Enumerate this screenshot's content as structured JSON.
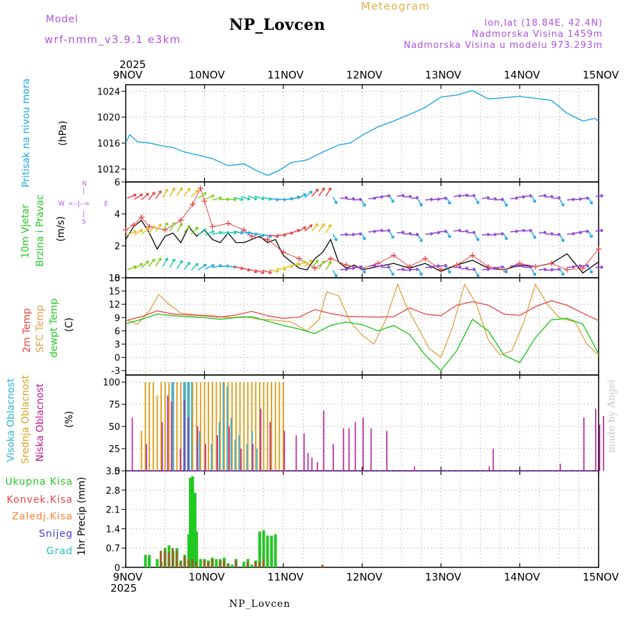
{
  "header": {
    "model_label": "Model",
    "model_name": "wrf-nmm_v3.9.1  e3km",
    "station": "NP_Lovcen",
    "product": "Meteogram",
    "lonlat": "lon,lat (18.84E, 42.4N)",
    "altitude": "Nadmorska Visina 1459m",
    "model_altitude": "Nadmorska Visina u modelu 973.293m"
  },
  "footer": {
    "station": "NP_Lovcen",
    "watermark": "made by Angel"
  },
  "time_axis": {
    "year": "2025",
    "day_labels": [
      "9NOV",
      "10NOV",
      "11NOV",
      "12NOV",
      "13NOV",
      "14NOV",
      "15NOV"
    ],
    "start_day": 9,
    "end_day": 15
  },
  "colors": {
    "pressure": "#1ea8e0",
    "temp2m": "#e84444",
    "sfc_temp": "#e0a040",
    "dewpt": "#22c822",
    "high_cloud": "#2bb0e0",
    "mid_cloud": "#e0a020",
    "low_cloud": "#c01890",
    "total_precip": "#22c822",
    "conv_precip": "#e84444",
    "frozen_precip": "#ff8030",
    "snow": "#4040e0",
    "hail": "#20c0c0",
    "purple_text": "#b050e0",
    "orange_text": "#e0b040"
  },
  "panels": {
    "pressure": {
      "ylabel_1": "Pritisak na nivou mora",
      "ylabel_2": "(hPa)",
      "yticks": [
        "1012",
        "1016",
        "1020",
        "1024"
      ]
    },
    "wind": {
      "ylabel_1": "10m Vjetar",
      "ylabel_2": "Brzina i Pravac",
      "ylabel_3": "(m/s)",
      "yticks": [
        "0",
        "2",
        "4",
        "6"
      ],
      "compass_n": "N",
      "compass_s": "S",
      "compass_w": "W",
      "compass_e": "E"
    },
    "temperature": {
      "ylabel_1": "2m Temp",
      "ylabel_2": "SFC Temp",
      "ylabel_3": "dewpt Temp",
      "ylabel_4": "(C)",
      "yticks": [
        "-3",
        "0",
        "3",
        "6",
        "9",
        "12",
        "15",
        "18"
      ]
    },
    "cloud": {
      "ylabel_1": "Visoka Oblacnost",
      "ylabel_2": "Srednja Oblacnost",
      "ylabel_3": "Niska Oblacnost",
      "ylabel_4": "(%)",
      "yticks": [
        "0",
        "25",
        "50",
        "75",
        "100"
      ]
    },
    "precip": {
      "ylabel": "1hr Precip (mm)",
      "yticks": [
        "0",
        "0.7",
        "1.4",
        "2.1",
        "2.8",
        "3.5"
      ],
      "legend": [
        "Ukupna Kisa",
        "Konvek.Kisa",
        "Zaledj.Kisa",
        "Snijeg",
        "Grad"
      ]
    }
  },
  "chart_data": [
    {
      "type": "line",
      "title": "Pritisak na nivou mora",
      "ylabel": "(hPa)",
      "ylim": [
        1010,
        1025
      ],
      "x_unit": "days since 9NOV 00h",
      "series": [
        {
          "name": "MSLP",
          "x": [
            0,
            0.05,
            0.15,
            0.3,
            0.45,
            0.6,
            0.75,
            0.9,
            1.1,
            1.3,
            1.5,
            1.65,
            1.8,
            1.95,
            2.1,
            2.3,
            2.5,
            2.7,
            2.85,
            3.0,
            3.2,
            3.4,
            3.6,
            3.8,
            4.0,
            4.2,
            4.4,
            4.6,
            4.8,
            5.0,
            5.2,
            5.4,
            5.6,
            5.8,
            5.95,
            6.0
          ],
          "values": [
            1016,
            1017.3,
            1016.2,
            1016,
            1015.6,
            1015.3,
            1014.6,
            1014.2,
            1013.6,
            1012.5,
            1012.8,
            1011.8,
            1011,
            1011.8,
            1013,
            1013.4,
            1014.6,
            1015.7,
            1016,
            1017.2,
            1018.5,
            1019.4,
            1020.4,
            1021.5,
            1023.1,
            1023.4,
            1024.1,
            1022.8,
            1023,
            1023.2,
            1022.9,
            1022.6,
            1020.6,
            1019.4,
            1019.8,
            1019.4
          ]
        }
      ]
    },
    {
      "type": "line",
      "title": "10m Vjetar Brzina i Pravac",
      "ylabel": "(m/s)",
      "ylim": [
        0,
        6
      ],
      "x_unit": "days since 9NOV 00h",
      "series": [
        {
          "name": "Wind speed",
          "x": [
            0,
            0.1,
            0.2,
            0.3,
            0.4,
            0.5,
            0.6,
            0.7,
            0.8,
            0.9,
            1.0,
            1.1,
            1.2,
            1.3,
            1.4,
            1.5,
            1.6,
            1.7,
            1.8,
            1.9,
            2.0,
            2.1,
            2.2,
            2.3,
            2.4,
            2.5,
            2.6,
            2.7,
            2.8,
            2.9,
            3.0,
            3.2,
            3.4,
            3.6,
            3.8,
            4.0,
            4.2,
            4.4,
            4.6,
            4.8,
            5.0,
            5.2,
            5.4,
            5.6,
            5.8,
            6.0
          ],
          "values": [
            2.4,
            3.2,
            3.6,
            2.8,
            1.8,
            2.6,
            2.8,
            2.2,
            3.2,
            2.6,
            3.0,
            2.4,
            2.2,
            2.8,
            2.2,
            2.2,
            2.4,
            2.6,
            2.2,
            2.4,
            1.4,
            1.0,
            0.6,
            0.5,
            1.2,
            1.6,
            2.4,
            1.0,
            0.6,
            0.8,
            0.5,
            0.7,
            0.9,
            0.6,
            0.9,
            0.4,
            0.8,
            1.1,
            0.6,
            0.5,
            0.8,
            0.7,
            0.9,
            1.5,
            0.3,
            1.0
          ]
        },
        {
          "name": "Gust",
          "x": [
            0,
            0.1,
            0.2,
            0.3,
            0.5,
            0.7,
            0.85,
            0.95,
            1.0,
            1.1,
            1.3,
            1.5,
            1.6,
            1.8,
            2.0,
            2.2,
            2.4,
            2.6,
            2.8,
            3.0,
            3.2,
            3.4,
            3.6,
            3.8,
            4.0,
            4.2,
            4.4,
            4.6,
            4.8,
            5.0,
            5.2,
            5.4,
            5.6,
            5.8,
            6.0
          ],
          "values": [
            3.0,
            3.3,
            3.8,
            3.2,
            3.0,
            3.6,
            4.6,
            5.6,
            4.8,
            3.2,
            3.4,
            3.0,
            2.6,
            2.4,
            1.6,
            1.2,
            0.6,
            1.2,
            0.8,
            0.6,
            0.9,
            1.4,
            0.7,
            1.2,
            0.5,
            0.8,
            1.4,
            0.7,
            0.5,
            0.9,
            0.7,
            0.9,
            0.5,
            0.6,
            1.8
          ]
        }
      ]
    },
    {
      "type": "line",
      "title": "Temperature",
      "ylabel": "(C)",
      "ylim": [
        -4,
        18
      ],
      "x_unit": "days since 9NOV 00h",
      "series": [
        {
          "name": "2m Temp",
          "x": [
            0,
            0.2,
            0.4,
            0.6,
            0.8,
            1.0,
            1.2,
            1.4,
            1.6,
            1.8,
            2.0,
            2.2,
            2.4,
            2.6,
            2.8,
            3.0,
            3.2,
            3.4,
            3.6,
            3.8,
            4.0,
            4.2,
            4.4,
            4.6,
            4.8,
            5.0,
            5.2,
            5.4,
            5.6,
            5.8,
            6.0
          ],
          "values": [
            8.3,
            9.2,
            10.5,
            9.8,
            9.6,
            9.4,
            9.1,
            9.6,
            10.4,
            9.4,
            8.8,
            9.1,
            10.8,
            9.9,
            9.3,
            9.2,
            9.1,
            9.2,
            11.2,
            9.8,
            9.4,
            11.8,
            12.6,
            11.8,
            9.8,
            9.5,
            11.5,
            12.8,
            11.8,
            10.0,
            8.3
          ]
        },
        {
          "name": "SFC Temp",
          "x": [
            0,
            0.15,
            0.3,
            0.42,
            0.55,
            0.7,
            0.9,
            1.1,
            1.3,
            1.5,
            1.7,
            1.9,
            2.1,
            2.3,
            2.45,
            2.55,
            2.7,
            2.85,
            3.0,
            3.15,
            3.3,
            3.45,
            3.55,
            3.7,
            3.85,
            4.0,
            4.15,
            4.3,
            4.45,
            4.6,
            4.75,
            4.9,
            5.05,
            5.2,
            5.35,
            5.5,
            5.7,
            5.85,
            6.0
          ],
          "values": [
            8.5,
            7.5,
            10.5,
            14.2,
            12.0,
            10.0,
            9.6,
            9.4,
            9.0,
            9.2,
            8.6,
            8.4,
            8.0,
            6.0,
            8.5,
            14.8,
            14.0,
            8.0,
            5.0,
            3.0,
            8.5,
            16.5,
            12.0,
            7.0,
            2.0,
            0.0,
            7.0,
            16.5,
            12.0,
            4.0,
            0.5,
            1.5,
            8.0,
            16.5,
            12.0,
            9.0,
            8.0,
            3.0,
            0.5
          ]
        },
        {
          "name": "dewpt Temp",
          "x": [
            0,
            0.2,
            0.4,
            0.6,
            0.8,
            1.0,
            1.2,
            1.4,
            1.6,
            1.8,
            2.0,
            2.2,
            2.4,
            2.6,
            2.8,
            3.0,
            3.2,
            3.4,
            3.6,
            3.8,
            4.0,
            4.2,
            4.4,
            4.6,
            4.8,
            5.0,
            5.2,
            5.4,
            5.6,
            5.8,
            6.0
          ],
          "values": [
            7.6,
            8.6,
            9.8,
            9.4,
            9.2,
            9.0,
            8.6,
            9.0,
            9.2,
            8.2,
            7.2,
            6.4,
            5.4,
            7.2,
            8.0,
            7.4,
            6.0,
            7.2,
            5.2,
            0.5,
            -3.0,
            1.5,
            8.6,
            6.0,
            0.5,
            -1.2,
            4.5,
            8.5,
            8.8,
            7.5,
            0.8
          ]
        }
      ]
    },
    {
      "type": "bar",
      "title": "Oblacnost",
      "ylabel": "(%)",
      "ylim": [
        0,
        100
      ],
      "x_unit": "days since 9NOV 00h",
      "series": [
        {
          "name": "Visoka Oblacnost",
          "x": [
            0.6,
            0.62,
            0.75,
            0.77,
            0.8,
            0.82,
            0.85,
            0.92,
            0.95,
            1.1,
            1.2,
            1.25,
            1.3,
            1.35,
            1.4,
            1.45,
            1.55,
            1.62,
            1.68
          ],
          "values": [
            100,
            100,
            100,
            100,
            100,
            100,
            100,
            30,
            45,
            30,
            55,
            100,
            95,
            60,
            35,
            40,
            30,
            45,
            25
          ]
        },
        {
          "name": "Srednja Oblacnost",
          "x": [
            0.2,
            0.25,
            0.3,
            0.35,
            0.4,
            0.45,
            0.5,
            0.55,
            0.6,
            0.65,
            0.7,
            0.75,
            0.8,
            0.85,
            0.9,
            0.95,
            1.0,
            1.05,
            1.1,
            1.15,
            1.2,
            1.25,
            1.3,
            1.35,
            1.4,
            1.45,
            1.5,
            1.55,
            1.6,
            1.65,
            1.7,
            1.75,
            1.8,
            1.85,
            1.9,
            1.95,
            2.0
          ],
          "values": [
            45,
            100,
            100,
            100,
            85,
            100,
            100,
            100,
            100,
            100,
            100,
            100,
            100,
            100,
            100,
            100,
            100,
            100,
            100,
            100,
            100,
            100,
            100,
            100,
            100,
            100,
            100,
            100,
            100,
            100,
            100,
            100,
            100,
            100,
            100,
            100,
            100
          ]
        },
        {
          "name": "Niska Oblacnost",
          "x": [
            0.07,
            0.25,
            0.45,
            0.52,
            0.57,
            0.68,
            0.73,
            0.78,
            0.9,
            1.0,
            1.15,
            1.3,
            1.45,
            1.6,
            1.7,
            1.82,
            2.0,
            2.15,
            2.25,
            2.3,
            2.35,
            2.42,
            2.5,
            2.62,
            2.75,
            2.82,
            2.9,
            3.0,
            3.1,
            3.3,
            3.65,
            4.6,
            4.65,
            5.5,
            5.8,
            5.95,
            6.0,
            6.05
          ],
          "values": [
            60,
            30,
            55,
            85,
            78,
            25,
            80,
            60,
            50,
            30,
            40,
            50,
            25,
            30,
            70,
            55,
            45,
            40,
            42,
            20,
            15,
            10,
            68,
            30,
            48,
            48,
            55,
            60,
            48,
            45,
            5,
            5,
            25,
            8,
            60,
            70,
            52,
            62
          ]
        }
      ]
    },
    {
      "type": "bar",
      "title": "1hr Precip",
      "ylabel": "(mm)",
      "ylim": [
        0,
        3.5
      ],
      "x_unit": "days since 9NOV 00h",
      "series": [
        {
          "name": "Ukupna Kisa",
          "x": [
            0.25,
            0.3,
            0.4,
            0.45,
            0.5,
            0.55,
            0.6,
            0.65,
            0.7,
            0.75,
            0.8,
            0.82,
            0.85,
            0.88,
            0.9,
            0.95,
            1.0,
            1.05,
            1.1,
            1.15,
            1.2,
            1.25,
            1.3,
            1.35,
            1.4,
            1.5,
            1.55,
            1.6,
            1.65,
            1.7,
            1.75,
            1.8,
            1.85,
            1.9
          ],
          "values": [
            0.45,
            0.45,
            0.3,
            0.2,
            0.7,
            0.8,
            0.6,
            0.7,
            0.25,
            0.45,
            1.2,
            3.25,
            3.3,
            2.7,
            1.3,
            0.3,
            0.3,
            0.25,
            0.35,
            0.3,
            0.3,
            0.35,
            0.15,
            0.1,
            0.3,
            0.2,
            0.3,
            0.1,
            0.25,
            1.3,
            1.35,
            1.15,
            1.15,
            1.2
          ]
        },
        {
          "name": "Konvek.Kisa",
          "x": [
            0.45,
            0.5,
            0.55,
            0.6,
            0.65,
            0.7,
            0.75,
            0.8,
            0.85,
            0.9,
            1.0,
            1.05,
            1.1,
            1.2,
            1.25,
            1.3,
            1.4,
            1.55,
            1.65,
            1.7,
            1.75,
            2.5
          ],
          "values": [
            0.6,
            0.6,
            0.55,
            0.7,
            0.6,
            0.2,
            0.4,
            0.3,
            0.3,
            0.2,
            0.25,
            0.2,
            0.3,
            0.25,
            0.25,
            0.1,
            0.25,
            0.2,
            0.2,
            0.2,
            0.3,
            0.1
          ]
        },
        {
          "name": "Zaledj.Kisa",
          "x": [],
          "values": []
        },
        {
          "name": "Snijeg",
          "x": [],
          "values": []
        },
        {
          "name": "Grad",
          "x": [],
          "values": []
        }
      ]
    }
  ]
}
